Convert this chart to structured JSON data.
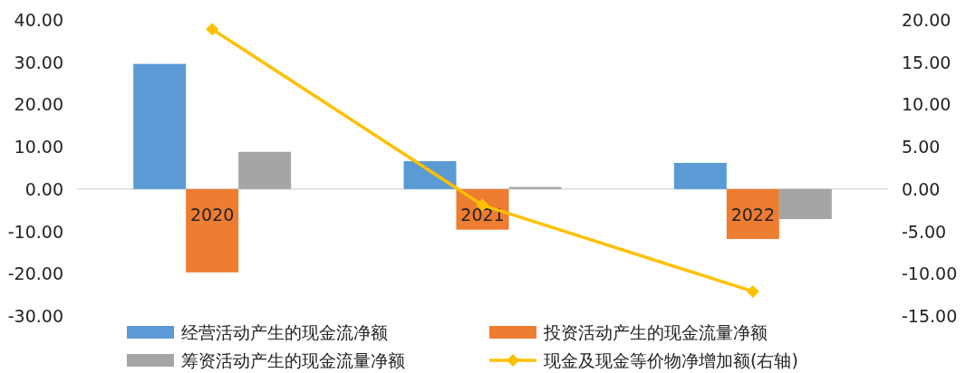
{
  "chart_data": {
    "type": "bar",
    "categories": [
      "2020",
      "2021",
      "2022"
    ],
    "series": [
      {
        "name": "经营活动产生的现金流净额",
        "color": "#5b9bd5",
        "values": [
          29.6,
          6.6,
          6.2
        ]
      },
      {
        "name": "投资活动产生的现金流量净额",
        "color": "#ed7d31",
        "values": [
          -19.7,
          -9.6,
          -11.8
        ]
      },
      {
        "name": "筹资活动产生的现金流量净额",
        "color": "#a5a5a5",
        "values": [
          8.8,
          0.5,
          -7.1
        ]
      },
      {
        "name": "现金及现金等价物净增加额(右轴)",
        "color": "#ffc000",
        "type": "line",
        "axis": "y2",
        "marker": "diamond",
        "values": [
          18.9,
          -1.9,
          -12.1
        ]
      }
    ],
    "ylim": [
      -30,
      40
    ],
    "yticks": [
      {
        "value": -30,
        "label": "-30.00"
      },
      {
        "value": -20,
        "label": "-20.00"
      },
      {
        "value": -10,
        "label": "-10.00"
      },
      {
        "value": 0,
        "label": "0.00"
      },
      {
        "value": 10,
        "label": "10.00"
      },
      {
        "value": 20,
        "label": "20.00"
      },
      {
        "value": 30,
        "label": "30.00"
      },
      {
        "value": 40,
        "label": "40.00"
      }
    ],
    "y2lim": [
      -15,
      20
    ],
    "y2ticks": [
      {
        "value": -15,
        "label": "-15.00"
      },
      {
        "value": -10,
        "label": "-10.00"
      },
      {
        "value": -5,
        "label": "-5.00"
      },
      {
        "value": 0,
        "label": "0.00"
      },
      {
        "value": 5,
        "label": "5.00"
      },
      {
        "value": 10,
        "label": "10.00"
      },
      {
        "value": 15,
        "label": "15.00"
      },
      {
        "value": 20,
        "label": "20.00"
      }
    ],
    "legend": "bottom"
  }
}
